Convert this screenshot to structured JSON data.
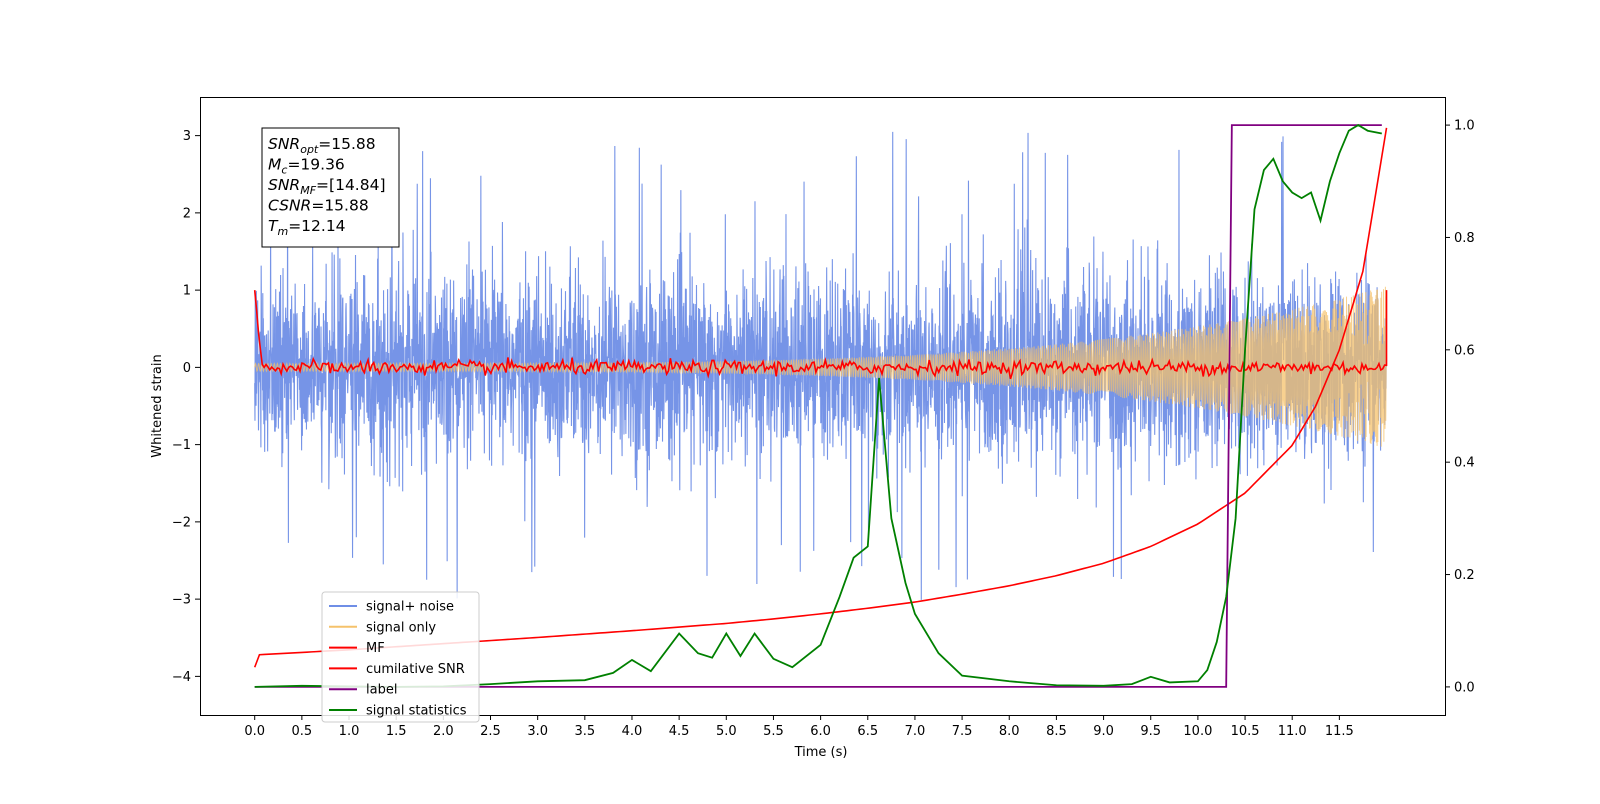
{
  "chart_data": {
    "type": "line",
    "xlabel": "Time (s)",
    "ylabel": "Whitened strain",
    "xlim": [
      -0.58,
      12.62
    ],
    "ylim_left": [
      -4.5,
      3.5
    ],
    "ylim_right": [
      -0.05,
      1.05
    ],
    "x_ticks": [
      0.0,
      0.5,
      1.0,
      1.5,
      2.0,
      2.5,
      3.0,
      3.5,
      4.0,
      4.5,
      5.0,
      5.5,
      6.0,
      6.5,
      7.0,
      7.5,
      8.0,
      8.5,
      9.0,
      9.5,
      10.0,
      10.5,
      11.0,
      11.5
    ],
    "x_tick_labels": [
      "0.0",
      "0.5",
      "1.0",
      "1.5",
      "2.0",
      "2.5",
      "3.0",
      "3.5",
      "4.0",
      "4.5",
      "5.0",
      "5.5",
      "6.0",
      "6.5",
      "7.0",
      "7.5",
      "8.0",
      "8.5",
      "9.0",
      "9.5",
      "10.0",
      "10.5",
      "11.0",
      "11.5"
    ],
    "y_ticks_left": [
      -4,
      -3,
      -2,
      -1,
      0,
      1,
      2,
      3
    ],
    "y_tick_labels_left": [
      "−4",
      "−3",
      "−2",
      "−1",
      "0",
      "1",
      "2",
      "3"
    ],
    "y_ticks_right": [
      0.0,
      0.2,
      0.4,
      0.6,
      0.8,
      1.0
    ],
    "y_tick_labels_right": [
      "0.0",
      "0.2",
      "0.4",
      "0.6",
      "0.8",
      "1.0"
    ],
    "grid": false,
    "legend_position": "lower-left",
    "series": [
      {
        "name": "signal+ noise",
        "axis": "left",
        "color": "#6f8ee6",
        "kind": "noise",
        "x_range": [
          0.0,
          12.0
        ],
        "sigma": 0.6,
        "max_abs_envelope": 3.2
      },
      {
        "name": "signal only",
        "axis": "left",
        "color": "#f5c26b",
        "kind": "chirp",
        "x_range": [
          0.0,
          12.0
        ],
        "amplitude_start": 0.05,
        "amplitude_end": 1.05,
        "t_merge": 12.14
      },
      {
        "name": "MF",
        "axis": "left",
        "color": "#ff0000",
        "kind": "mf",
        "x_range": [
          0.0,
          12.0
        ],
        "baseline": 0.0,
        "start_value": 1.0,
        "end_value": 0.2
      },
      {
        "name": "cumilative SNR",
        "axis": "right",
        "color": "#ff0000",
        "x": [
          0.0,
          0.02,
          1.0,
          2.0,
          3.0,
          4.0,
          5.0,
          5.5,
          6.0,
          6.5,
          7.0,
          7.5,
          8.0,
          8.5,
          9.0,
          9.5,
          10.0,
          10.5,
          11.0,
          11.25,
          11.5,
          11.75,
          12.0
        ],
        "y": [
          0.035,
          0.057,
          0.066,
          0.077,
          0.088,
          0.1,
          0.113,
          0.121,
          0.13,
          0.14,
          0.151,
          0.165,
          0.18,
          0.198,
          0.22,
          0.25,
          0.29,
          0.345,
          0.43,
          0.5,
          0.6,
          0.74,
          0.995
        ]
      },
      {
        "name": "label",
        "axis": "right",
        "color": "#800080",
        "x": [
          0.0,
          10.3,
          10.36,
          11.95
        ],
        "y": [
          0.0,
          0.0,
          1.0,
          1.0
        ]
      },
      {
        "name": "signal statistics",
        "axis": "right",
        "color": "#008000",
        "x": [
          0.0,
          0.5,
          1.0,
          1.5,
          2.0,
          2.5,
          3.0,
          3.5,
          3.8,
          4.0,
          4.2,
          4.5,
          4.7,
          4.85,
          5.0,
          5.15,
          5.3,
          5.5,
          5.7,
          6.0,
          6.2,
          6.35,
          6.5,
          6.62,
          6.75,
          6.9,
          7.0,
          7.25,
          7.5,
          8.0,
          8.5,
          9.0,
          9.3,
          9.5,
          9.7,
          10.0,
          10.1,
          10.2,
          10.3,
          10.4,
          10.5,
          10.6,
          10.7,
          10.8,
          10.9,
          11.0,
          11.1,
          11.2,
          11.3,
          11.4,
          11.5,
          11.6,
          11.7,
          11.8,
          11.95
        ],
        "y": [
          0.0,
          0.002,
          0.001,
          0.0,
          0.001,
          0.005,
          0.01,
          0.012,
          0.025,
          0.048,
          0.028,
          0.095,
          0.06,
          0.052,
          0.095,
          0.055,
          0.095,
          0.05,
          0.035,
          0.075,
          0.16,
          0.23,
          0.25,
          0.55,
          0.3,
          0.185,
          0.13,
          0.06,
          0.02,
          0.01,
          0.003,
          0.002,
          0.005,
          0.018,
          0.008,
          0.01,
          0.03,
          0.08,
          0.16,
          0.3,
          0.6,
          0.85,
          0.92,
          0.94,
          0.9,
          0.88,
          0.87,
          0.88,
          0.83,
          0.9,
          0.95,
          0.99,
          1.0,
          0.99,
          0.985
        ]
      }
    ],
    "annotations": [
      {
        "base": "SNR",
        "sub": "opt",
        "value": "=15.88"
      },
      {
        "base": "M",
        "sub": "c",
        "value": "=19.36"
      },
      {
        "base": "SNR",
        "sub": "MF",
        "value": "=[14.84]"
      },
      {
        "base": "CSNR",
        "sub": "",
        "value": "=15.88"
      },
      {
        "base": "T",
        "sub": "m",
        "value": "=12.14"
      }
    ]
  }
}
